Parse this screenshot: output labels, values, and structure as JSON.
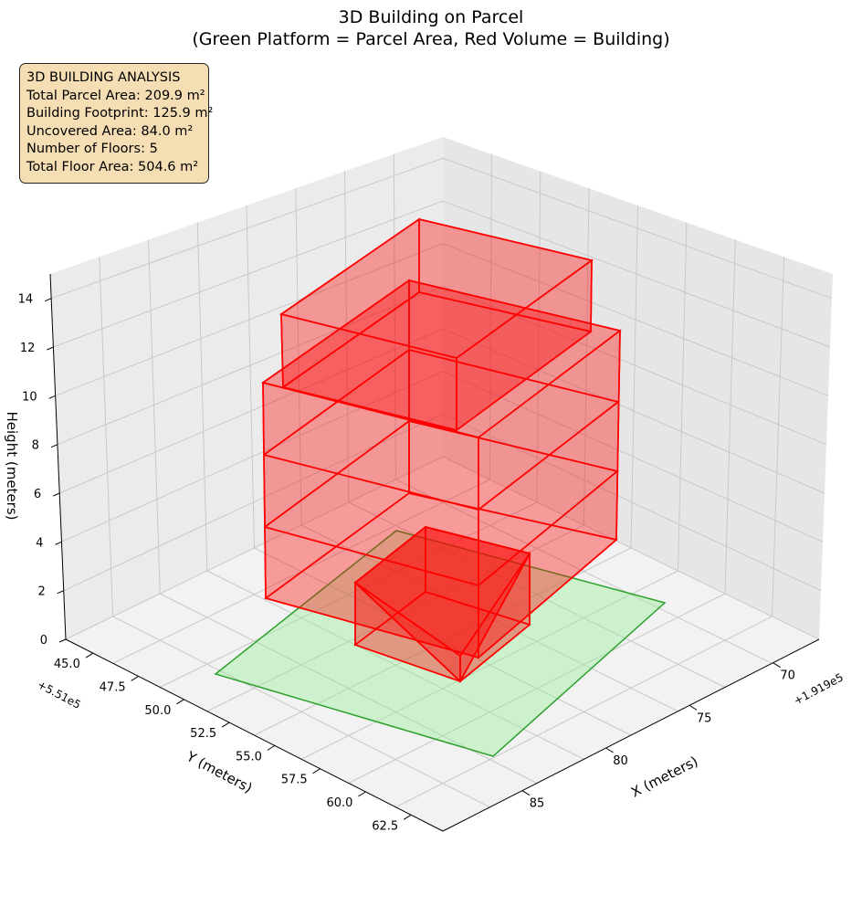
{
  "chart_data": {
    "type": "3d-bar",
    "title_line1": "3D Building on Parcel",
    "title_line2": "(Green Platform = Parcel Area, Red Volume = Building)",
    "xlabel": "X (meters)",
    "ylabel": "Y (meters)",
    "zlabel": "Height (meters)",
    "x_offset_label": "+1.919e5",
    "y_offset_label": "+5.51e5",
    "x_ticks": [
      "70",
      "75",
      "80",
      "85"
    ],
    "y_ticks": [
      "45.0",
      "47.5",
      "50.0",
      "52.5",
      "55.0",
      "57.5",
      "60.0",
      "62.5"
    ],
    "z_ticks": [
      "0",
      "2",
      "4",
      "6",
      "8",
      "10",
      "12",
      "14"
    ],
    "z_range": [
      0,
      15
    ],
    "parcel": {
      "name": "Parcel Area",
      "color": "#2ca02c",
      "fill": "#90ee90",
      "z": 0
    },
    "building": {
      "name": "Building",
      "color": "#ff0000",
      "floors": 5,
      "floor_height_approx": 3
    },
    "info_box": {
      "line1": "3D BUILDING ANALYSIS",
      "line2": "Total Parcel Area: 209.9 m²",
      "line3": "Building Footprint: 125.9 m²",
      "line4": "Uncovered Area: 84.0 m²",
      "line5": "Number of Floors: 5",
      "line6": "Total Floor Area: 504.6 m²"
    },
    "pane_color": "#f2f2f2",
    "grid": true
  }
}
